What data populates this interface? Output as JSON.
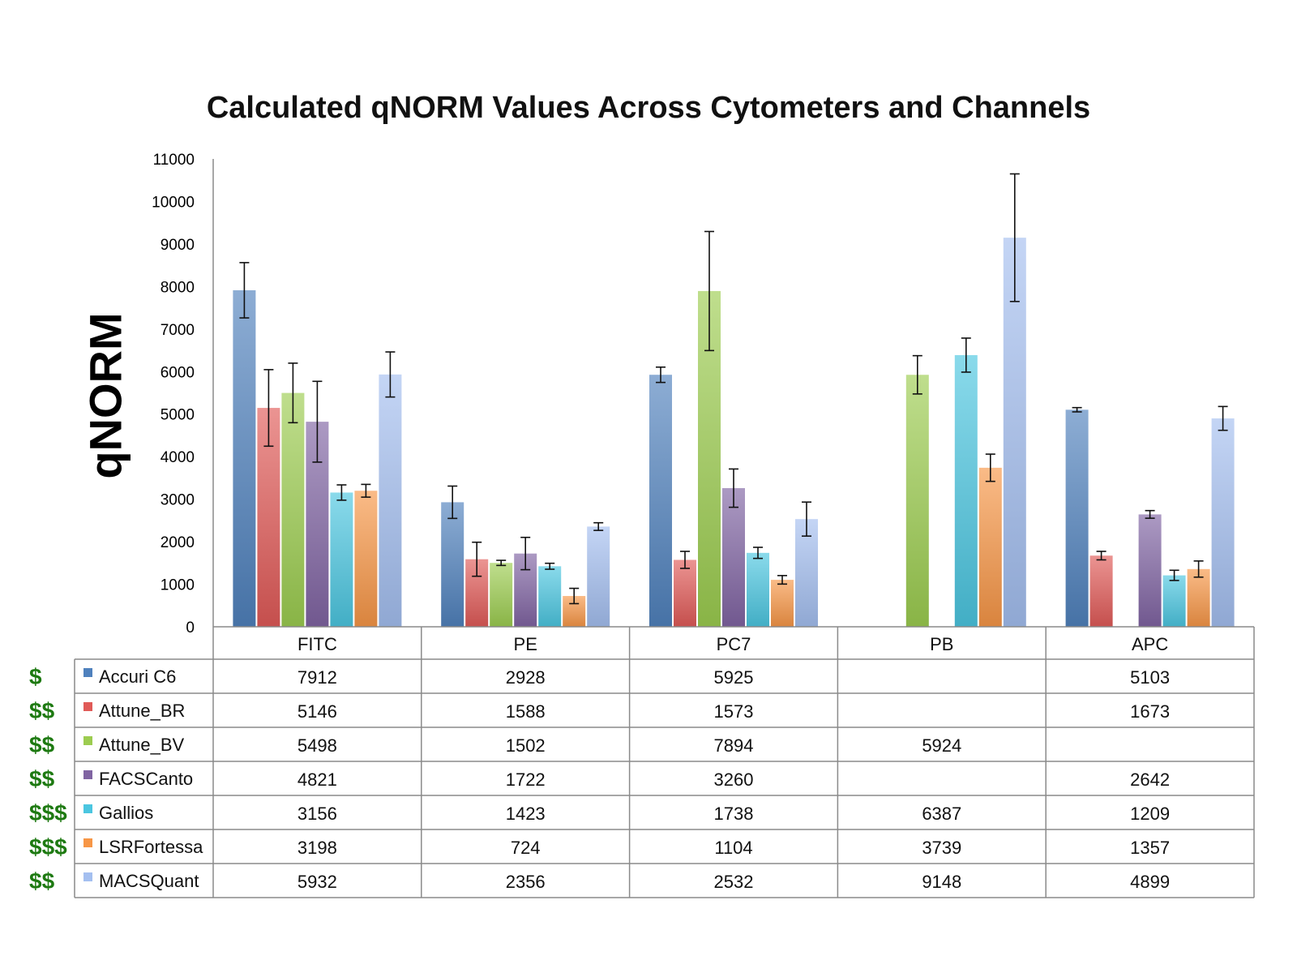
{
  "chart_data": {
    "type": "bar",
    "title": "Calculated qNORM Values Across Cytometers and Channels",
    "ylabel": "qNORM",
    "xlabel": "",
    "ylim": [
      0,
      11000
    ],
    "yticks": [
      0,
      1000,
      2000,
      3000,
      4000,
      5000,
      6000,
      7000,
      8000,
      9000,
      10000,
      11000
    ],
    "categories": [
      "FITC",
      "PE",
      "PC7",
      "PB",
      "APC"
    ],
    "legend_position": "data-table-left",
    "series": [
      {
        "name": "Accuri C6",
        "cost": "$",
        "color": "#4f81bd",
        "values": [
          7912,
          2928,
          5925,
          null,
          5103
        ],
        "errors": [
          650,
          380,
          180,
          null,
          50
        ]
      },
      {
        "name": "Attune_BR",
        "cost": "$$",
        "color": "#e05a57",
        "values": [
          5146,
          1588,
          1573,
          null,
          1673
        ],
        "errors": [
          900,
          400,
          200,
          null,
          100
        ]
      },
      {
        "name": "Attune_BV",
        "cost": "$$",
        "color": "#9ccc50",
        "values": [
          5498,
          1502,
          7894,
          5924,
          null
        ],
        "errors": [
          700,
          60,
          1400,
          450,
          null
        ]
      },
      {
        "name": "FACSCanto",
        "cost": "$$",
        "color": "#8064a2",
        "values": [
          4821,
          1722,
          3260,
          null,
          2642
        ],
        "errors": [
          950,
          380,
          450,
          null,
          90
        ]
      },
      {
        "name": "Gallios",
        "cost": "$$$",
        "color": "#4bc6e0",
        "values": [
          3156,
          1423,
          1738,
          6387,
          1209
        ],
        "errors": [
          180,
          70,
          130,
          400,
          120
        ]
      },
      {
        "name": "LSRFortessa",
        "cost": "$$$",
        "color": "#f79646",
        "values": [
          3198,
          724,
          1104,
          3739,
          1357
        ],
        "errors": [
          150,
          180,
          100,
          320,
          190
        ]
      },
      {
        "name": "MACSQuant",
        "cost": "$$",
        "color": "#a4bff0",
        "values": [
          5932,
          2356,
          2532,
          9148,
          4899
        ],
        "errors": [
          530,
          90,
          400,
          1500,
          280
        ]
      }
    ],
    "grid": false
  }
}
